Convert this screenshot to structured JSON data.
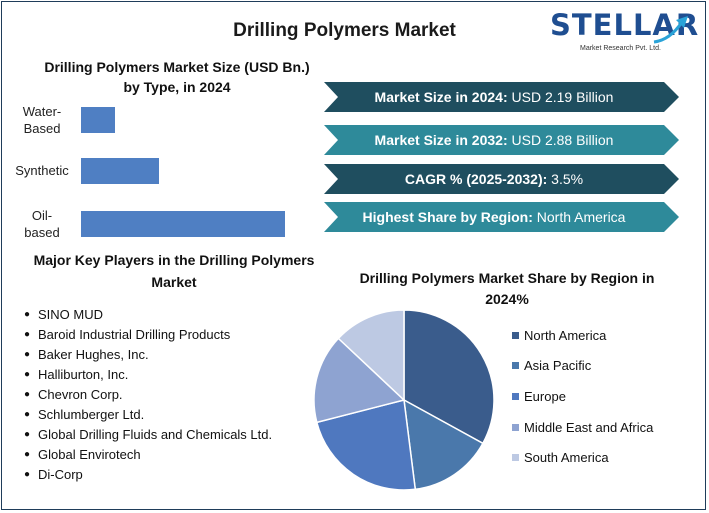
{
  "header": {
    "title": "Drilling Polymers Market"
  },
  "logo": {
    "brand": "STELLAR",
    "tagline": "Market Research Pvt. Ltd."
  },
  "banners": [
    {
      "label": "Market Size in 2024:",
      "value": " USD 2.19 Billion",
      "color": "#1f4e5f"
    },
    {
      "label": "Market Size in 2032:",
      "value": " USD 2.88 Billion",
      "color": "#2e8a9a"
    },
    {
      "label": "CAGR % (2025-2032):",
      "value": " 3.5%",
      "color": "#1f4e5f"
    },
    {
      "label": "Highest Share by Region:",
      "value": " North America",
      "color": "#2e8a9a"
    }
  ],
  "key_players": {
    "title": "Major Key Players in the Drilling Polymers Market",
    "items": [
      "SINO MUD",
      "Baroid Industrial Drilling Products",
      "Baker Hughes, Inc.",
      "Halliburton, Inc.",
      "Chevron Corp.",
      "Schlumberger Ltd.",
      "Global Drilling Fluids and Chemicals Ltd.",
      "Global Envirotech",
      "Di-Corp"
    ]
  },
  "chart_data": [
    {
      "type": "bar",
      "orientation": "horizontal",
      "title": "Drilling Polymers Market Size (USD Bn.) by Type, in 2024",
      "categories": [
        "Water-Based",
        "Synthetic",
        "Oil-based"
      ],
      "values": [
        0.17,
        0.39,
        1.02
      ],
      "xlim": [
        0,
        1.1
      ],
      "grid": false,
      "color": "#4f7fc3"
    },
    {
      "type": "pie",
      "title": "Drilling Polymers Market Share by Region in 2024%",
      "categories": [
        "North America",
        "Asia Pacific",
        "Europe",
        "Middle East and Africa",
        "South America"
      ],
      "values": [
        33,
        15,
        23,
        16,
        13
      ],
      "colors": [
        "#3a5c8c",
        "#4a78ab",
        "#4f78bf",
        "#8ea3d1",
        "#bdc9e3"
      ],
      "legend": "right"
    }
  ]
}
